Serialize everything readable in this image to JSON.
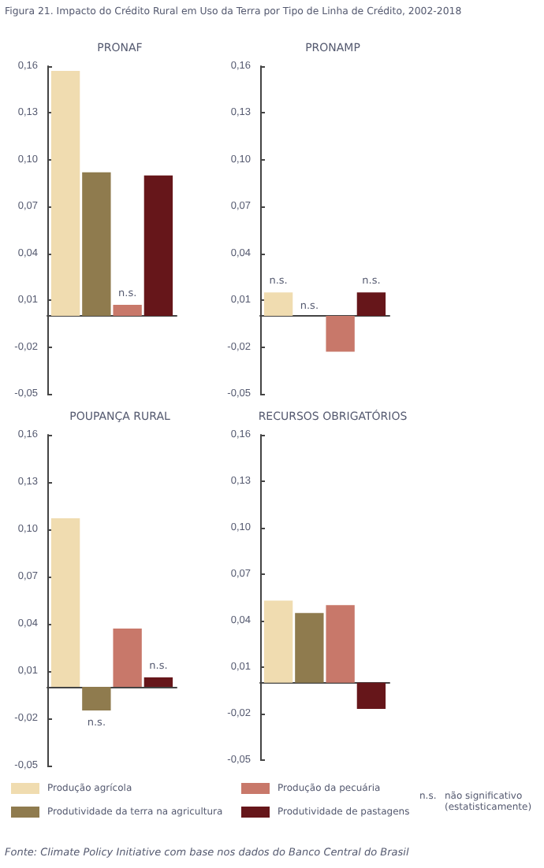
{
  "chart_data": [
    {
      "type": "bar",
      "title": "PRONAF",
      "annotations": [
        "Figura 21. Impacto do Crédito Rural em Uso da Terra por Tipo de Linha de Crédito, 2002-2018"
      ],
      "categories": [
        null
      ],
      "series": [
        {
          "color": "#f0dcb0",
          "values": [
            0.157
          ],
          "value_labels": [
            null
          ]
        },
        {
          "color": "#8f7b4e",
          "values": [
            0.092
          ],
          "value_labels": [
            null
          ]
        },
        {
          "color": "#c8786a",
          "values": [
            0.007
          ],
          "value_labels": [
            "n.s."
          ]
        },
        {
          "color": "#66161a",
          "values": [
            0.09
          ],
          "value_labels": [
            null
          ]
        }
      ],
      "ylim": [
        -0.05,
        0.16
      ],
      "yticks": [
        {
          "value": -0.05,
          "label": "-0,05"
        },
        {
          "value": -0.02,
          "label": "-0,02"
        },
        {
          "value": 0.01,
          "label": "0,01"
        },
        {
          "value": 0.04,
          "label": "0,04"
        },
        {
          "value": 0.07,
          "label": "0,07"
        },
        {
          "value": 0.1,
          "label": "0,10"
        },
        {
          "value": 0.13,
          "label": "0,13"
        },
        {
          "value": 0.16,
          "label": "0,16"
        }
      ],
      "tick_labels": "y",
      "grid": false,
      "legend": false
    },
    {
      "type": "bar",
      "title": "PRONAMP",
      "annotations": [
        "n.s."
      ],
      "categories": [
        null
      ],
      "series": [
        {
          "color": "#f0dcb0",
          "values": [
            0.015
          ],
          "value_labels": [
            "n.s."
          ]
        },
        {
          "color": "#8f7b4e",
          "values": [
            null
          ],
          "value_labels": [
            null
          ]
        },
        {
          "color": "#c8786a",
          "values": [
            -0.023
          ],
          "value_labels": [
            null
          ]
        },
        {
          "color": "#66161a",
          "values": [
            0.015
          ],
          "value_labels": [
            "n.s."
          ]
        }
      ],
      "ylim": [
        -0.05,
        0.16
      ],
      "yticks": [
        {
          "value": -0.05,
          "label": "-0,05"
        },
        {
          "value": -0.02,
          "label": "-0,02"
        },
        {
          "value": 0.01,
          "label": "0,01"
        },
        {
          "value": 0.04,
          "label": "0,04"
        },
        {
          "value": 0.07,
          "label": "0,07"
        },
        {
          "value": 0.1,
          "label": "0,10"
        },
        {
          "value": 0.13,
          "label": "0,13"
        },
        {
          "value": 0.16,
          "label": "0,16"
        }
      ],
      "tick_labels": "y",
      "grid": false,
      "legend": false
    },
    {
      "type": "bar",
      "title": "POUPANÇA RURAL",
      "annotations": [
        "n.s.",
        "não significativo (estatisticamente)",
        "Fonte: Climate Policy Initiative com base nos dados do Banco Central do Brasil"
      ],
      "categories": [
        null
      ],
      "series": [
        {
          "name": "Produção agrícola",
          "color": "#f0dcb0",
          "values": [
            0.107
          ],
          "value_labels": [
            null
          ]
        },
        {
          "name": "Produtividade da terra na agricultura",
          "color": "#8f7b4e",
          "values": [
            -0.015
          ],
          "value_labels": [
            "n.s."
          ]
        },
        {
          "name": "Produção da pecuária",
          "color": "#c8786a",
          "values": [
            0.037
          ],
          "value_labels": [
            null
          ]
        },
        {
          "name": "Produtividade de pastagens",
          "color": "#66161a",
          "values": [
            0.006
          ],
          "value_labels": [
            "n.s."
          ]
        }
      ],
      "ylim": [
        -0.05,
        0.16
      ],
      "yticks": [
        {
          "value": -0.05,
          "label": "-0,05"
        },
        {
          "value": -0.02,
          "label": "-0,02"
        },
        {
          "value": 0.01,
          "label": "0,01"
        },
        {
          "value": 0.04,
          "label": "0,04"
        },
        {
          "value": 0.07,
          "label": "0,07"
        },
        {
          "value": 0.1,
          "label": "0,10"
        },
        {
          "value": 0.13,
          "label": "0,13"
        },
        {
          "value": 0.16,
          "label": "0,16"
        }
      ],
      "tick_labels": "y",
      "grid": false,
      "legend": "bottom"
    },
    {
      "type": "bar",
      "title": "RECURSOS OBRIGATÓRIOS",
      "categories": [
        null
      ],
      "series": [
        {
          "color": "#f0dcb0",
          "values": [
            0.053
          ],
          "value_labels": [
            null
          ]
        },
        {
          "color": "#8f7b4e",
          "values": [
            0.045
          ],
          "value_labels": [
            null
          ]
        },
        {
          "color": "#c8786a",
          "values": [
            0.05
          ],
          "value_labels": [
            null
          ]
        },
        {
          "color": "#66161a",
          "values": [
            -0.017
          ],
          "value_labels": [
            null
          ]
        }
      ],
      "ylim": [
        -0.05,
        0.16
      ],
      "yticks": [
        {
          "value": -0.05,
          "label": "-0,05"
        },
        {
          "value": -0.02,
          "label": "-0,02"
        },
        {
          "value": 0.01,
          "label": "0,01"
        },
        {
          "value": 0.04,
          "label": "0,04"
        },
        {
          "value": 0.07,
          "label": "0,07"
        },
        {
          "value": 0.1,
          "label": "0,10"
        },
        {
          "value": 0.13,
          "label": "0,13"
        },
        {
          "value": 0.16,
          "label": "0,16"
        }
      ],
      "tick_labels": "y",
      "grid": false,
      "legend": false
    }
  ]
}
